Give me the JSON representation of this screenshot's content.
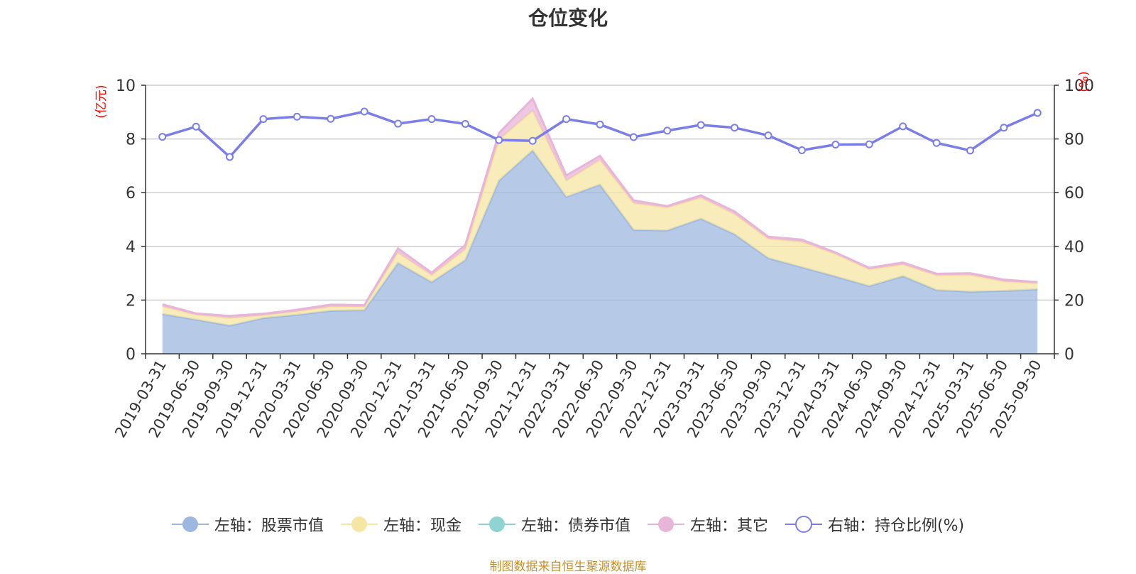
{
  "chart_data": {
    "type": "area",
    "title": "仓位变化",
    "left_axis_unit": "(亿元)",
    "right_axis_unit": "(%)",
    "ylim_left": [
      0,
      10
    ],
    "yticks_left": [
      0,
      2,
      4,
      6,
      8,
      10
    ],
    "ylim_right": [
      0,
      100
    ],
    "yticks_right": [
      0,
      20,
      40,
      60,
      80,
      100
    ],
    "categories": [
      "2019-03-31",
      "2019-06-30",
      "2019-09-30",
      "2019-12-31",
      "2020-03-31",
      "2020-06-30",
      "2020-09-30",
      "2020-12-31",
      "2021-03-31",
      "2021-06-30",
      "2021-09-30",
      "2021-12-31",
      "2022-03-31",
      "2022-06-30",
      "2022-09-30",
      "2022-12-31",
      "2023-03-31",
      "2023-06-30",
      "2023-09-30",
      "2023-12-31",
      "2024-03-31",
      "2024-06-30",
      "2024-09-30",
      "2024-12-31",
      "2025-03-31",
      "2025-06-30",
      "2025-09-30"
    ],
    "series": [
      {
        "name": "左轴：股票市值",
        "axis": "left",
        "color": "#9db8e0",
        "values": [
          1.48,
          1.27,
          1.05,
          1.33,
          1.45,
          1.6,
          1.62,
          3.38,
          2.67,
          3.49,
          6.45,
          7.57,
          5.84,
          6.3,
          4.61,
          4.59,
          5.03,
          4.45,
          3.56,
          3.22,
          2.88,
          2.52,
          2.89,
          2.37,
          2.31,
          2.34,
          2.4
        ]
      },
      {
        "name": "左轴：现金",
        "axis": "left",
        "color": "#f5e6a3",
        "values": [
          0.28,
          0.18,
          0.28,
          0.1,
          0.12,
          0.15,
          0.13,
          0.38,
          0.25,
          0.4,
          1.52,
          1.48,
          0.6,
          0.92,
          1.0,
          0.85,
          0.78,
          0.75,
          0.72,
          0.95,
          0.83,
          0.62,
          0.43,
          0.55,
          0.62,
          0.35,
          0.22
        ]
      },
      {
        "name": "左轴：债券市值",
        "axis": "left",
        "color": "#8fd3d3",
        "values": [
          0,
          0,
          0,
          0,
          0,
          0,
          0,
          0,
          0,
          0,
          0,
          0,
          0,
          0,
          0,
          0,
          0,
          0,
          0,
          0,
          0,
          0,
          0,
          0,
          0,
          0,
          0
        ]
      },
      {
        "name": "左轴：其它",
        "axis": "left",
        "color": "#e8b4d8",
        "values": [
          0.08,
          0.05,
          0.08,
          0.06,
          0.07,
          0.08,
          0.06,
          0.16,
          0.1,
          0.16,
          0.25,
          0.45,
          0.2,
          0.15,
          0.1,
          0.06,
          0.09,
          0.1,
          0.08,
          0.08,
          0.06,
          0.06,
          0.08,
          0.06,
          0.07,
          0.07,
          0.05
        ]
      },
      {
        "name": "右轴：持仓比例(%)",
        "axis": "right",
        "color": "#7b7de8",
        "values": [
          80.8,
          84.6,
          73.3,
          87.4,
          88.3,
          87.5,
          90.2,
          85.7,
          87.4,
          85.6,
          79.6,
          79.3,
          87.4,
          85.4,
          80.7,
          83.1,
          85.2,
          84.2,
          81.3,
          75.8,
          77.9,
          78.0,
          84.7,
          78.5,
          75.7,
          84.2,
          89.7
        ]
      }
    ]
  },
  "source_note": "制图数据来自恒生聚源数据库"
}
